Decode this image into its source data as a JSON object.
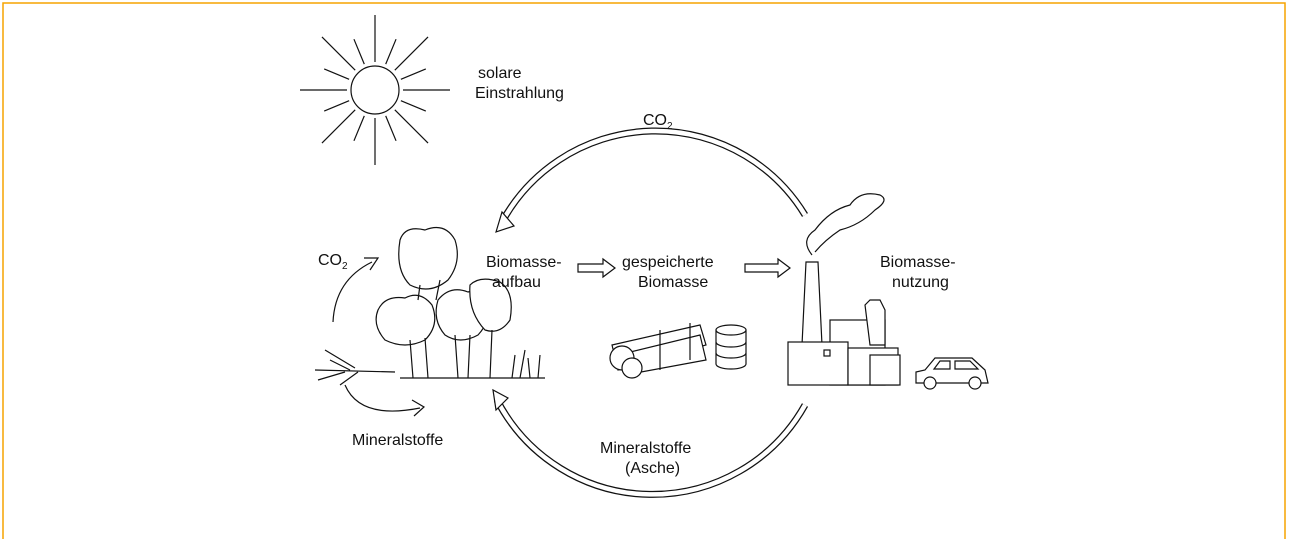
{
  "labels": {
    "solar": [
      "solare",
      "Einstrahlung"
    ],
    "co2_top": {
      "text": "CO",
      "sub": "2"
    },
    "co2_left": {
      "text": "CO",
      "sub": "2"
    },
    "biomass_build": [
      "Biomasse-",
      "aufbau"
    ],
    "stored": [
      "gespeicherte",
      "Biomasse"
    ],
    "use": [
      "Biomasse-",
      "nutzung"
    ],
    "minerals_left": "Mineralstoffe",
    "minerals_ash": [
      "Mineralstoffe",
      "(Asche)"
    ]
  }
}
